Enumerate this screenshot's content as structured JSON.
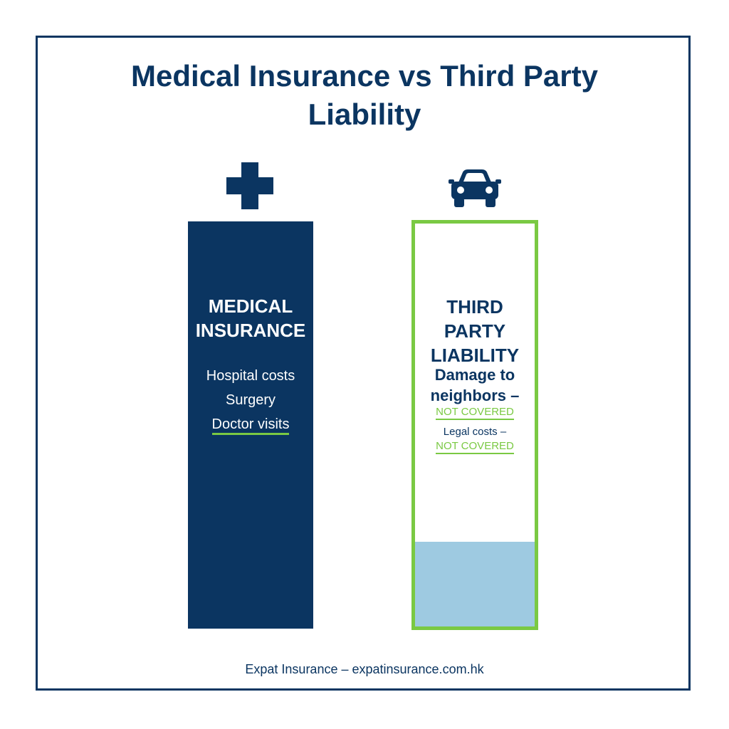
{
  "title": "Medical Insurance vs Third Party Liability",
  "icons": {
    "medical": "medical-cross-icon",
    "liability": "car-icon"
  },
  "medical": {
    "heading": "MEDICAL INSURANCE",
    "items": [
      "Hospital costs",
      "Surgery",
      "Doctor visits"
    ]
  },
  "liability": {
    "heading": "THIRD PARTY LIABILITY",
    "items": [
      {
        "label": "Damage to neighbors –",
        "status": "NOT COVERED"
      },
      {
        "label": "Legal costs –",
        "status": "NOT COVERED"
      }
    ],
    "fill_level": 0.21
  },
  "footer": "Expat Insurance – expatinsurance.com.hk",
  "colors": {
    "navy": "#0b3561",
    "green": "#7ac943",
    "light_blue": "#9ecae1"
  }
}
